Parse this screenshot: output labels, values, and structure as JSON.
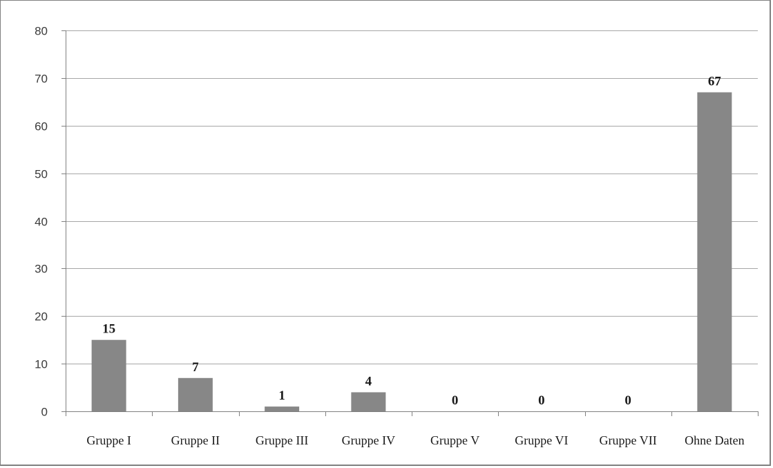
{
  "chart_data": {
    "type": "bar",
    "categories": [
      "Gruppe I",
      "Gruppe II",
      "Gruppe III",
      "Gruppe IV",
      "Gruppe V",
      "Gruppe VI",
      "Gruppe VII",
      "Ohne Daten"
    ],
    "values": [
      15,
      7,
      1,
      4,
      0,
      0,
      0,
      67
    ],
    "data_labels": [
      "15",
      "7",
      "1",
      "4",
      "0",
      "0",
      "0",
      "67"
    ],
    "y_ticks": [
      "0",
      "10",
      "20",
      "30",
      "40",
      "50",
      "60",
      "70",
      "80"
    ],
    "ylim": [
      0,
      80
    ],
    "title": "",
    "xlabel": "",
    "ylabel": "",
    "grid": true,
    "legend": "none",
    "bar_color": "#878787"
  }
}
